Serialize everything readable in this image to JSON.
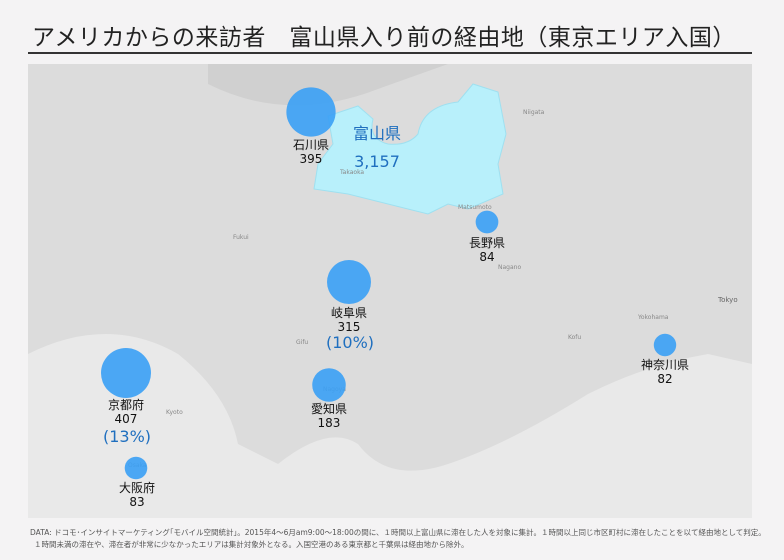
{
  "title": "アメリカからの来訪者　富山県入り前の経由地（東京エリア入国）",
  "destination": {
    "name": "富山県",
    "value": "3,157",
    "color": "#b8f0fb"
  },
  "bubble_color": "#3aa0f5",
  "prefectures": [
    {
      "name": "石川県",
      "value": "395",
      "pct": ""
    },
    {
      "name": "長野県",
      "value": "84",
      "pct": ""
    },
    {
      "name": "岐阜県",
      "value": "315",
      "pct": "(10%)"
    },
    {
      "name": "神奈川県",
      "value": "82",
      "pct": ""
    },
    {
      "name": "愛知県",
      "value": "183",
      "pct": ""
    },
    {
      "name": "京都府",
      "value": "407",
      "pct": "(13%)"
    },
    {
      "name": "大阪府",
      "value": "83",
      "pct": ""
    }
  ],
  "cities": [
    "Tokyo",
    "Nagano",
    "Matsumoto",
    "Gifu",
    "Nagoya",
    "Kyoto",
    "Osaka",
    "Takaoka",
    "Kofu",
    "Yokohama",
    "Fukui",
    "Niigata"
  ],
  "footer": [
    "DATA: ドコモ･インサイトマーケティング｢モバイル空間統計｣。2015年4～6月am9:00～18:00の間に、１時間以上富山県に滞在した人を対象に集計。１時間以上同じ市区町村に滞在したことを以て経由地として判定。",
    "１時間未満の滞在や、滞在者が非常に少なかったエリアは集計対象外となる。入国空港のある東京都と千葉県は経由地から除外。"
  ]
}
